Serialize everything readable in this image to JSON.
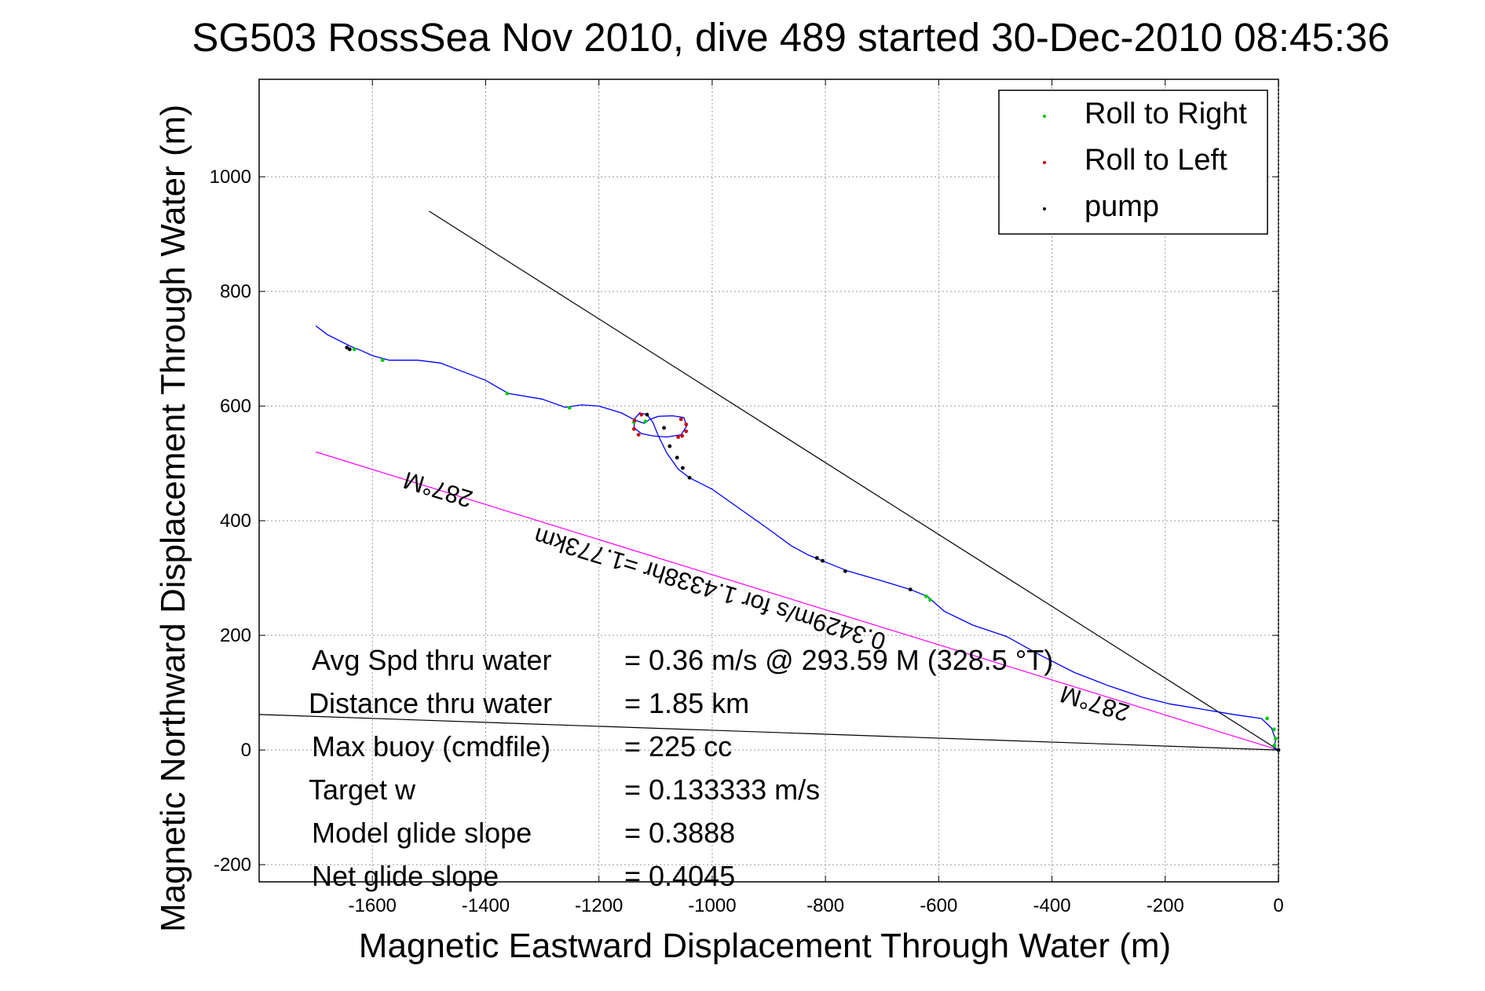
{
  "chart_data": {
    "type": "line",
    "title": "SG503 RossSea Nov 2010, dive 489 started 30-Dec-2010 08:45:36",
    "xlabel": "Magnetic Eastward Displacement Through Water (m)",
    "ylabel": "Magnetic Northward Displacement Through Water (m)",
    "xlim": [
      -1800,
      0
    ],
    "ylim": [
      -230,
      1170
    ],
    "xticks": [
      -1600,
      -1400,
      -1200,
      -1000,
      -800,
      -600,
      -400,
      -200,
      0
    ],
    "yticks": [
      -200,
      0,
      200,
      400,
      600,
      800,
      1000
    ],
    "grid": true,
    "legend": {
      "placement": "top-right",
      "entries": [
        {
          "label": "Roll to Right",
          "color": "#00cc00"
        },
        {
          "label": "Roll to Left",
          "color": "#cc0000"
        },
        {
          "label": "pump",
          "color": "#000000"
        }
      ]
    },
    "track": {
      "name": "track",
      "color": "#0000ff",
      "points": [
        [
          -1700,
          740
        ],
        [
          -1680,
          725
        ],
        [
          -1640,
          705
        ],
        [
          -1620,
          697
        ],
        [
          -1600,
          688
        ],
        [
          -1570,
          680
        ],
        [
          -1520,
          680
        ],
        [
          -1480,
          675
        ],
        [
          -1440,
          660
        ],
        [
          -1400,
          645
        ],
        [
          -1360,
          622
        ],
        [
          -1300,
          612
        ],
        [
          -1260,
          598
        ],
        [
          -1230,
          602
        ],
        [
          -1200,
          600
        ],
        [
          -1160,
          588
        ],
        [
          -1135,
          575
        ],
        [
          -1120,
          570
        ],
        [
          -1110,
          577
        ],
        [
          -1095,
          582
        ],
        [
          -1070,
          583
        ],
        [
          -1050,
          580
        ],
        [
          -1045,
          565
        ],
        [
          -1055,
          550
        ],
        [
          -1080,
          546
        ],
        [
          -1105,
          548
        ],
        [
          -1125,
          552
        ],
        [
          -1138,
          562
        ],
        [
          -1137,
          578
        ],
        [
          -1128,
          588
        ],
        [
          -1115,
          585
        ],
        [
          -1105,
          572
        ],
        [
          -1095,
          548
        ],
        [
          -1080,
          518
        ],
        [
          -1060,
          490
        ],
        [
          -1040,
          475
        ],
        [
          -1000,
          455
        ],
        [
          -950,
          420
        ],
        [
          -900,
          385
        ],
        [
          -860,
          356
        ],
        [
          -830,
          340
        ],
        [
          -800,
          328
        ],
        [
          -760,
          312
        ],
        [
          -700,
          295
        ],
        [
          -650,
          280
        ],
        [
          -620,
          268
        ],
        [
          -590,
          242
        ],
        [
          -540,
          218
        ],
        [
          -480,
          198
        ],
        [
          -420,
          165
        ],
        [
          -360,
          135
        ],
        [
          -300,
          112
        ],
        [
          -240,
          92
        ],
        [
          -190,
          80
        ],
        [
          -140,
          72
        ],
        [
          -80,
          62
        ],
        [
          -30,
          55
        ],
        [
          -12,
          38
        ],
        [
          -5,
          18
        ],
        [
          -8,
          3
        ],
        [
          0,
          0
        ]
      ]
    },
    "roll_right": [
      [
        -1632,
        699
      ],
      [
        -1582,
        680
      ],
      [
        -1362,
        622
      ],
      [
        -1252,
        597
      ],
      [
        -1138,
        572
      ],
      [
        -1118,
        573
      ],
      [
        -622,
        268
      ],
      [
        -615,
        262
      ],
      [
        -20,
        55
      ],
      [
        -8,
        36
      ],
      [
        -5,
        20
      ],
      [
        -7,
        8
      ]
    ],
    "roll_left": [
      [
        -1125,
        585
      ],
      [
        -1137,
        575
      ],
      [
        -1138,
        560
      ],
      [
        -1130,
        550
      ],
      [
        -1055,
        577
      ],
      [
        -1046,
        568
      ],
      [
        -1046,
        556
      ],
      [
        -1053,
        548
      ],
      [
        -1060,
        546
      ]
    ],
    "pump": [
      [
        -1645,
        702
      ],
      [
        -1640,
        699
      ],
      [
        -1115,
        585
      ],
      [
        -1085,
        562
      ],
      [
        -1075,
        530
      ],
      [
        -1062,
        510
      ],
      [
        -1052,
        492
      ],
      [
        -1040,
        475
      ],
      [
        -815,
        335
      ],
      [
        -805,
        330
      ],
      [
        -765,
        312
      ],
      [
        -650,
        280
      ],
      [
        0,
        0
      ]
    ],
    "reference_lines": [
      {
        "from": [
          0,
          0
        ],
        "to": [
          -1500,
          940
        ],
        "color": "#000000"
      },
      {
        "from": [
          0,
          0
        ],
        "to": [
          -1800,
          62
        ],
        "color": "#000000"
      },
      {
        "from": [
          0,
          0
        ],
        "to": [
          -1700,
          520
        ],
        "color": "#ff00ff"
      }
    ],
    "annotations": [
      {
        "text": "287°M",
        "anchor": [
          -1480,
          468
        ],
        "rotate": 197
      },
      {
        "text": "0.3429m/s for 1.4338hr =1.773km",
        "anchor": [
          -1000,
          295
        ],
        "rotate": 197
      },
      {
        "text": "287°M",
        "anchor": [
          -320,
          95
        ],
        "rotate": 197
      }
    ],
    "stats": [
      {
        "label": "Avg Spd thru water",
        "value": "=  0.36 m/s @ 293.59 M (328.5 °T)"
      },
      {
        "label": "Distance thru water",
        "value": "=  1.85 km"
      },
      {
        "label": "Max buoy (cmdfile)",
        "value": "= 225 cc"
      },
      {
        "label": "Target w",
        "value": "= 0.133333 m/s"
      },
      {
        "label": "Model glide slope",
        "value": "= 0.3888"
      },
      {
        "label": "Net glide slope",
        "value": "= 0.4045"
      }
    ]
  }
}
